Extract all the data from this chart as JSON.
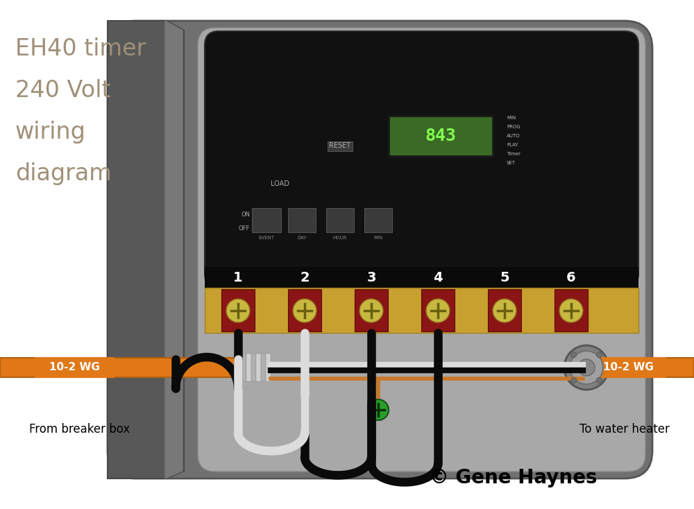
{
  "title_lines": [
    "EH40 timer",
    "240 Volt",
    "wiring",
    "diagram"
  ],
  "title_color": "#a09078",
  "title_fontsize": 24,
  "copyright_text": "© Gene Haynes",
  "copyright_fontsize": 20,
  "label_left": "From breaker box",
  "label_right": "To water heater",
  "label_wire_left": "10-2 WG",
  "label_wire_right": "10-2 WG",
  "bg_color": "#ffffff",
  "enc_outer_color": "#707070",
  "enc_inner_color": "#909090",
  "door_color": "#585858",
  "door_edge_color": "#686868",
  "panel_color": "#111111",
  "terminal_gold": "#c8a030",
  "terminal_red": "#8b1515",
  "screw_gold": "#c8b840",
  "wire_black": "#0a0a0a",
  "wire_white": "#dcdcdc",
  "wire_bare": "#c87828",
  "orange_conduit": "#e07818",
  "green_screw": "#28a028",
  "lcd_bg": "#3a6a25",
  "lcd_text": "#80ff50"
}
